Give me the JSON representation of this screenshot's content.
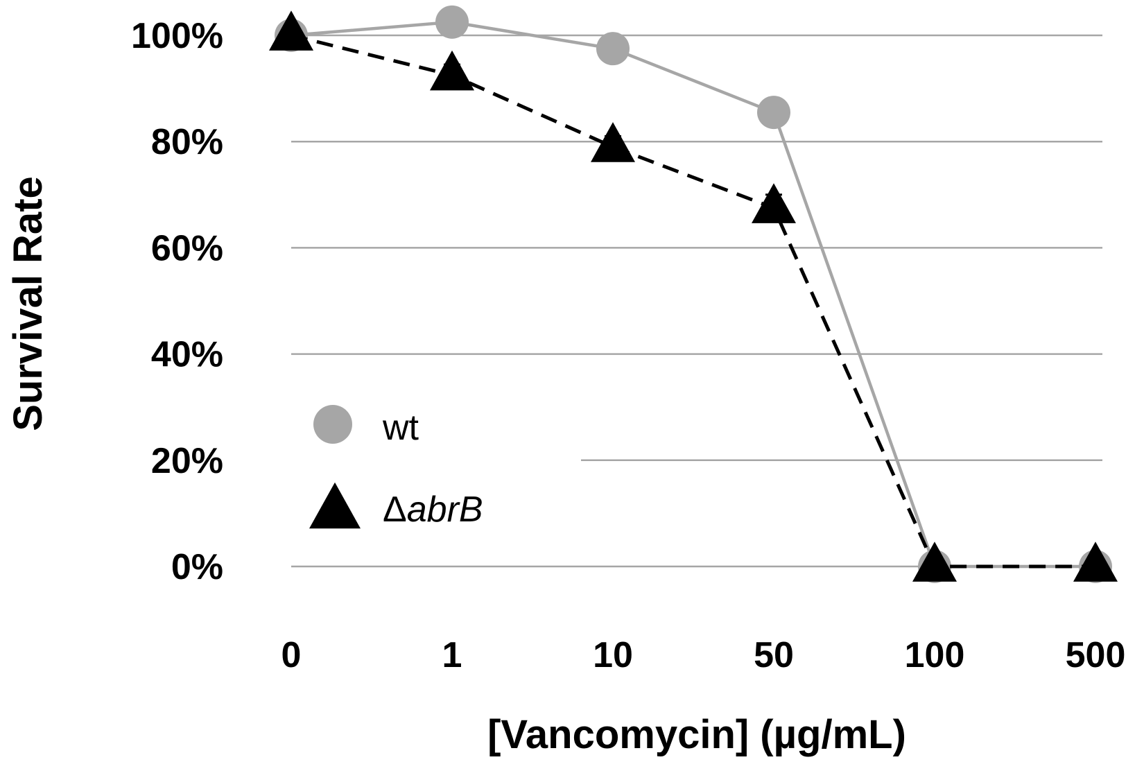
{
  "chart_data": {
    "type": "line",
    "title": "",
    "xlabel": "[Vancomycin] (µg/mL)",
    "ylabel": "Survival Rate",
    "categories": [
      "0",
      "1",
      "10",
      "50",
      "100",
      "500"
    ],
    "ylim": [
      0,
      100
    ],
    "yticks": [
      0,
      20,
      40,
      60,
      80,
      100
    ],
    "ytick_labels": [
      "0%",
      "20%",
      "40%",
      "60%",
      "80%",
      "100%"
    ],
    "grid": "horizontal",
    "legend_position": "center-left",
    "series": [
      {
        "name": "wt",
        "legend_prefix": "",
        "legend_italic": "",
        "marker": "circle",
        "line_style": "solid",
        "color": "#a6a6a6",
        "values": [
          100,
          102.5,
          97.5,
          85.5,
          0,
          0
        ],
        "errors": [
          0,
          1.0,
          1.5,
          0,
          0,
          0
        ]
      },
      {
        "name": "ΔabrB",
        "legend_prefix": "Δ",
        "legend_italic": "abrB",
        "marker": "triangle",
        "line_style": "dashed",
        "color": "#000000",
        "values": [
          100,
          92.5,
          79,
          67.5,
          0,
          0
        ],
        "errors": [
          0,
          2.0,
          2.0,
          2.5,
          0,
          0
        ]
      }
    ]
  }
}
